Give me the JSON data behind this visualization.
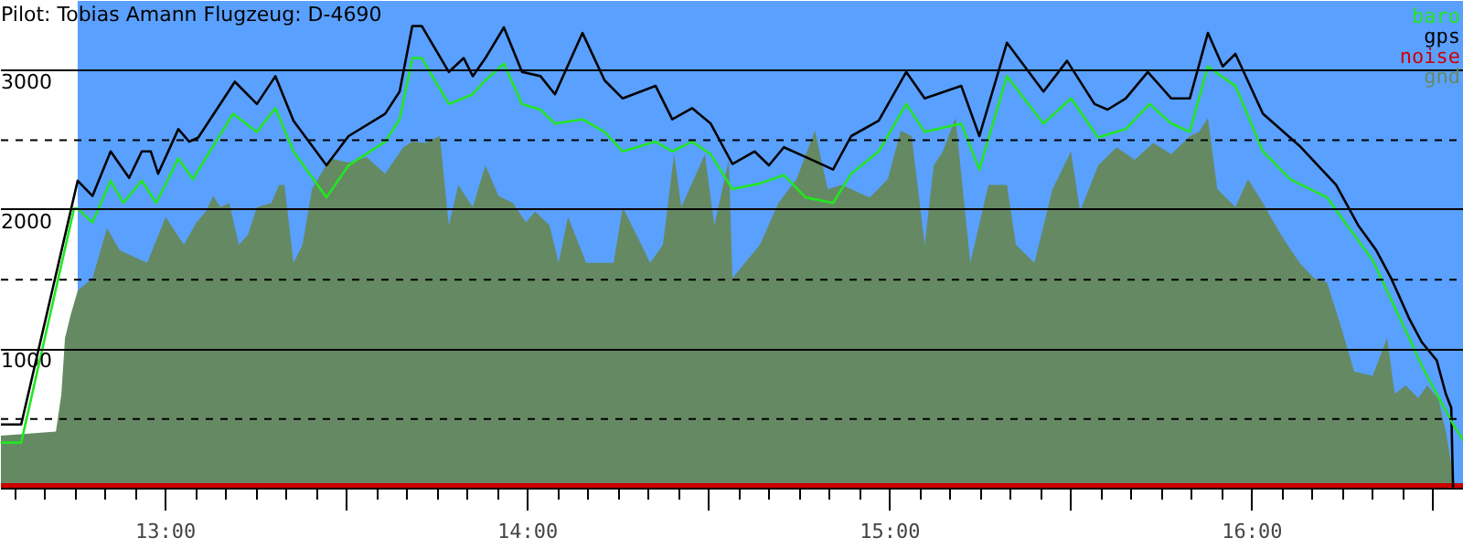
{
  "chart_data": {
    "type": "line",
    "title": "Pilot: Tobias Amann Flugzeug: D-4690",
    "xlim": [
      12.545,
      16.585
    ],
    "ylim": [
      0,
      3500
    ],
    "xticks": [
      {
        "value": 13,
        "label": "13:00"
      },
      {
        "value": 13.5,
        "label": null
      },
      {
        "value": 14,
        "label": "14:00"
      },
      {
        "value": 14.5,
        "label": null
      },
      {
        "value": 15,
        "label": "15:00"
      },
      {
        "value": 15.5,
        "label": null
      },
      {
        "value": 16,
        "label": "16:00"
      },
      {
        "value": 16.5,
        "label": null
      }
    ],
    "yticks": [
      1000,
      2000,
      3000
    ],
    "grid": "y",
    "legend": "top right",
    "line_style": "solid",
    "marker": "none",
    "ref_lines": [
      {
        "axis": "y",
        "value": 500,
        "line_style": "dashed",
        "color": "#000000"
      },
      {
        "axis": "y",
        "value": 1500,
        "line_style": "dashed",
        "color": "#000000"
      },
      {
        "axis": "y",
        "value": 2500,
        "line_style": "dashed",
        "color": "#000000"
      }
    ],
    "bands": [
      {
        "axis": "x",
        "from": 12.757,
        "to": 16.585,
        "color": "#5aa0ff"
      }
    ],
    "series": [
      {
        "name": "baro",
        "color": "#22e622",
        "x": [
          12.545,
          12.601,
          12.747,
          12.757,
          12.798,
          12.848,
          12.883,
          12.934,
          12.974,
          13.035,
          13.075,
          13.186,
          13.252,
          13.303,
          13.353,
          13.444,
          13.505,
          13.606,
          13.646,
          13.681,
          13.707,
          13.782,
          13.848,
          13.883,
          13.934,
          13.984,
          14.035,
          14.075,
          14.151,
          14.212,
          14.262,
          14.353,
          14.399,
          14.454,
          14.505,
          14.565,
          14.641,
          14.707,
          14.767,
          14.843,
          14.893,
          14.969,
          15.045,
          15.096,
          15.197,
          15.247,
          15.323,
          15.424,
          15.5,
          15.575,
          15.651,
          15.717,
          15.777,
          15.828,
          15.878,
          15.954,
          16.03,
          16.106,
          16.207,
          16.282,
          16.333,
          16.434,
          16.469,
          16.51,
          16.56,
          16.585
        ],
        "values": [
          330,
          330,
          2010,
          2010,
          1910,
          2210,
          2050,
          2210,
          2050,
          2370,
          2220,
          2690,
          2560,
          2730,
          2420,
          2090,
          2320,
          2490,
          2650,
          3090,
          3090,
          2760,
          2830,
          2930,
          3050,
          2760,
          2720,
          2620,
          2650,
          2560,
          2420,
          2490,
          2420,
          2490,
          2400,
          2150,
          2190,
          2250,
          2090,
          2050,
          2260,
          2420,
          2760,
          2560,
          2620,
          2290,
          2960,
          2620,
          2800,
          2520,
          2580,
          2760,
          2620,
          2560,
          3030,
          2890,
          2420,
          2220,
          2090,
          1820,
          1640,
          1080,
          880,
          680,
          440,
          340
        ]
      },
      {
        "name": "gps",
        "color": "#000000",
        "x": [
          12.545,
          12.601,
          12.757,
          12.798,
          12.848,
          12.899,
          12.934,
          12.959,
          12.979,
          13.035,
          13.065,
          13.09,
          13.191,
          13.252,
          13.303,
          13.353,
          13.444,
          13.505,
          13.606,
          13.646,
          13.681,
          13.707,
          13.782,
          13.823,
          13.848,
          13.883,
          13.934,
          13.984,
          14.035,
          14.075,
          14.151,
          14.212,
          14.262,
          14.353,
          14.399,
          14.454,
          14.505,
          14.565,
          14.626,
          14.666,
          14.707,
          14.767,
          14.843,
          14.893,
          14.969,
          15.045,
          15.096,
          15.197,
          15.247,
          15.323,
          15.424,
          15.489,
          15.565,
          15.601,
          15.651,
          15.712,
          15.777,
          15.828,
          15.878,
          15.919,
          15.954,
          16.03,
          16.131,
          16.232,
          16.293,
          16.343,
          16.384,
          16.434,
          16.469,
          16.51,
          16.535,
          16.55,
          16.555
        ],
        "values": [
          460,
          460,
          2210,
          2100,
          2420,
          2230,
          2420,
          2420,
          2260,
          2580,
          2490,
          2520,
          2920,
          2760,
          2960,
          2640,
          2320,
          2530,
          2690,
          2850,
          3320,
          3320,
          2990,
          3090,
          2960,
          3090,
          3310,
          2990,
          2960,
          2830,
          3270,
          2930,
          2800,
          2890,
          2650,
          2730,
          2620,
          2330,
          2420,
          2320,
          2450,
          2380,
          2290,
          2530,
          2640,
          2990,
          2800,
          2890,
          2530,
          3200,
          2850,
          3070,
          2760,
          2720,
          2800,
          2990,
          2800,
          2800,
          3270,
          3030,
          3120,
          2690,
          2460,
          2180,
          1890,
          1710,
          1510,
          1220,
          1050,
          920,
          680,
          580,
          10
        ]
      },
      {
        "name": "noise",
        "type": "area",
        "color": "#cc0000",
        "x": [
          12.545,
          16.585
        ],
        "values": [
          40,
          40
        ]
      },
      {
        "name": "gnd",
        "type": "area",
        "color": "#658a63",
        "x": [
          12.545,
          12.697,
          12.712,
          12.722,
          12.737,
          12.757,
          12.798,
          12.838,
          12.873,
          12.899,
          12.949,
          13.0,
          13.05,
          13.085,
          13.111,
          13.131,
          13.151,
          13.176,
          13.202,
          13.227,
          13.252,
          13.292,
          13.313,
          13.328,
          13.353,
          13.378,
          13.404,
          13.454,
          13.505,
          13.555,
          13.606,
          13.656,
          13.681,
          13.717,
          13.757,
          13.782,
          13.808,
          13.848,
          13.883,
          13.919,
          13.959,
          13.995,
          14.02,
          14.06,
          14.085,
          14.111,
          14.161,
          14.237,
          14.262,
          14.338,
          14.373,
          14.404,
          14.424,
          14.489,
          14.515,
          14.555,
          14.565,
          14.641,
          14.692,
          14.742,
          14.793,
          14.828,
          14.868,
          14.944,
          14.994,
          15.03,
          15.06,
          15.096,
          15.121,
          15.146,
          15.181,
          15.222,
          15.272,
          15.323,
          15.348,
          15.399,
          15.449,
          15.5,
          15.525,
          15.575,
          15.626,
          15.676,
          15.727,
          15.777,
          15.828,
          15.853,
          15.878,
          15.904,
          15.954,
          15.989,
          16.03,
          16.08,
          16.131,
          16.171,
          16.207,
          16.247,
          16.282,
          16.333,
          16.373,
          16.394,
          16.424,
          16.459,
          16.484,
          16.515,
          16.535,
          16.56,
          16.585
        ],
        "values": [
          380,
          410,
          680,
          1080,
          1240,
          1420,
          1510,
          1870,
          1710,
          1680,
          1620,
          1950,
          1750,
          1910,
          1990,
          2100,
          2020,
          2050,
          1750,
          1820,
          2020,
          2050,
          2180,
          2180,
          1620,
          1750,
          2150,
          2370,
          2340,
          2380,
          2260,
          2450,
          2490,
          2480,
          2530,
          1890,
          2180,
          2020,
          2320,
          2100,
          2050,
          1910,
          1990,
          1890,
          1620,
          1950,
          1620,
          1620,
          2020,
          1620,
          1750,
          2400,
          2020,
          2400,
          1890,
          2360,
          1510,
          1750,
          2050,
          2220,
          2570,
          2150,
          2180,
          2090,
          2220,
          2570,
          2530,
          1750,
          2320,
          2420,
          2660,
          1620,
          2180,
          2180,
          1750,
          1620,
          2150,
          2420,
          1990,
          2320,
          2450,
          2360,
          2480,
          2400,
          2530,
          2560,
          2660,
          2150,
          2020,
          2220,
          2050,
          1820,
          1620,
          1510,
          1480,
          1150,
          840,
          810,
          1080,
          680,
          740,
          650,
          740,
          640,
          410,
          30,
          30
        ]
      }
    ]
  }
}
